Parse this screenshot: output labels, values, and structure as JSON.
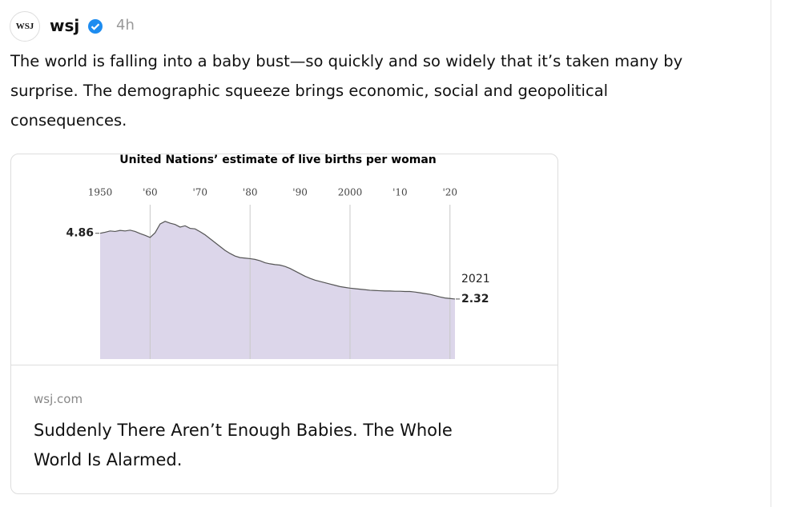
{
  "post": {
    "avatar": "WSJ",
    "author": "wsj",
    "time": "4h",
    "text": "The world is falling into a baby bust—so quickly and so widely that it’s taken many by surprise. The demographic squeeze brings economic, social and geopolitical consequences."
  },
  "chart_data": {
    "type": "area",
    "title": "United Nations’ estimate of live births per woman",
    "x": [
      1950,
      1951,
      1952,
      1953,
      1954,
      1955,
      1956,
      1957,
      1958,
      1959,
      1960,
      1961,
      1962,
      1963,
      1964,
      1965,
      1966,
      1967,
      1968,
      1969,
      1970,
      1971,
      1972,
      1973,
      1974,
      1975,
      1976,
      1977,
      1978,
      1979,
      1980,
      1981,
      1982,
      1983,
      1984,
      1985,
      1986,
      1987,
      1988,
      1989,
      1990,
      1991,
      1992,
      1993,
      1994,
      1995,
      1996,
      1997,
      1998,
      1999,
      2000,
      2001,
      2002,
      2003,
      2004,
      2005,
      2006,
      2007,
      2008,
      2009,
      2010,
      2011,
      2012,
      2013,
      2014,
      2015,
      2016,
      2017,
      2018,
      2019,
      2020,
      2021
    ],
    "values": [
      4.86,
      4.9,
      4.95,
      4.93,
      4.97,
      4.95,
      4.98,
      4.93,
      4.85,
      4.78,
      4.7,
      4.88,
      5.22,
      5.32,
      5.25,
      5.2,
      5.1,
      5.15,
      5.05,
      5.03,
      4.92,
      4.8,
      4.65,
      4.5,
      4.35,
      4.2,
      4.08,
      3.98,
      3.92,
      3.9,
      3.88,
      3.85,
      3.8,
      3.72,
      3.68,
      3.65,
      3.63,
      3.58,
      3.5,
      3.4,
      3.3,
      3.2,
      3.12,
      3.05,
      3.0,
      2.95,
      2.9,
      2.85,
      2.8,
      2.77,
      2.74,
      2.72,
      2.7,
      2.68,
      2.66,
      2.65,
      2.64,
      2.63,
      2.63,
      2.62,
      2.62,
      2.61,
      2.61,
      2.59,
      2.56,
      2.53,
      2.5,
      2.45,
      2.4,
      2.36,
      2.34,
      2.32
    ],
    "color": "#dcd6ea",
    "line_color": "#555555",
    "xlim": [
      1950,
      2021
    ],
    "ylim": [
      0,
      5.5
    ],
    "xticks": [
      1950,
      {
        "value": 1960,
        "label": "'60"
      },
      {
        "value": 1970,
        "label": "'70"
      },
      {
        "value": 1980,
        "label": "'80"
      },
      {
        "value": 1990,
        "label": "'90"
      },
      2000,
      {
        "value": 2010,
        "label": "'10"
      },
      {
        "value": 2020,
        "label": "'20"
      }
    ],
    "grid": true
  },
  "card": {
    "domain": "wsj.com",
    "title": "Suddenly There Aren’t Enough Babies. The Whole World Is Alarmed."
  }
}
